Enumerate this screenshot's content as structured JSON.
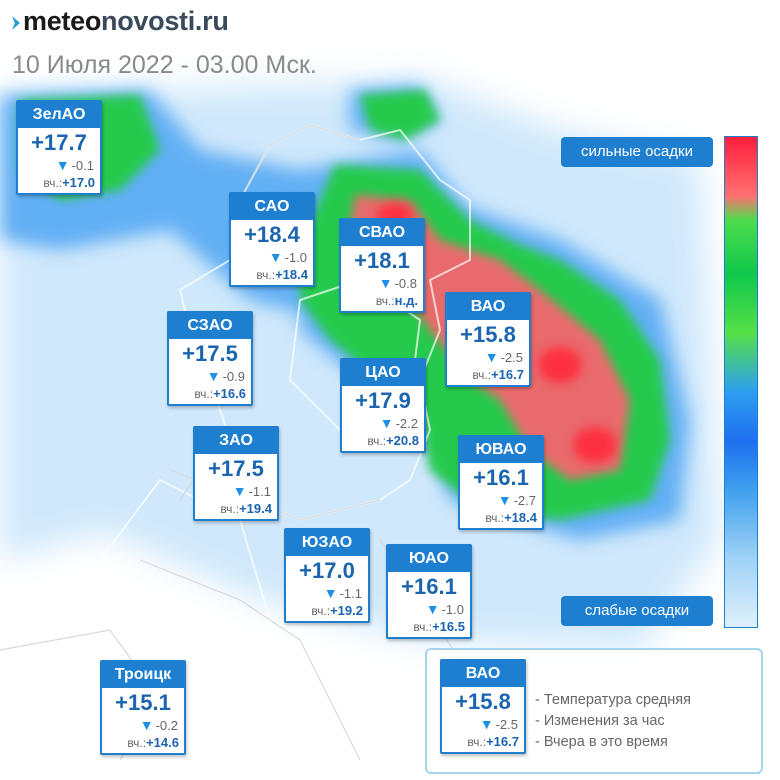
{
  "site_logo": {
    "part1": "meteo",
    "part2": "novosti.ru"
  },
  "subtitle": "10 Июля 2022 - 03.00 Мск.",
  "legend_scale": {
    "high_label": "сильные осадки",
    "low_label": "слабые осадки"
  },
  "yesterday_prefix": "вч.:",
  "districts": [
    {
      "name": "ЗелАО",
      "temp": "+17.7",
      "change": "-0.1",
      "yesterday": "+17.0"
    },
    {
      "name": "САО",
      "temp": "+18.4",
      "change": "-1.0",
      "yesterday": "+18.4"
    },
    {
      "name": "СВАО",
      "temp": "+18.1",
      "change": "-0.8",
      "yesterday": "н.д."
    },
    {
      "name": "ВАО",
      "temp": "+15.8",
      "change": "-2.5",
      "yesterday": "+16.7"
    },
    {
      "name": "СЗАО",
      "temp": "+17.5",
      "change": "-0.9",
      "yesterday": "+16.6"
    },
    {
      "name": "ЦАО",
      "temp": "+17.9",
      "change": "-2.2",
      "yesterday": "+20.8"
    },
    {
      "name": "ЗАО",
      "temp": "+17.5",
      "change": "-1.1",
      "yesterday": "+19.4"
    },
    {
      "name": "ЮВАО",
      "temp": "+16.1",
      "change": "-2.7",
      "yesterday": "+18.4"
    },
    {
      "name": "ЮЗАО",
      "temp": "+17.0",
      "change": "-1.1",
      "yesterday": "+19.2"
    },
    {
      "name": "ЮАО",
      "temp": "+16.1",
      "change": "-1.0",
      "yesterday": "+16.5"
    },
    {
      "name": "Троицк",
      "temp": "+15.1",
      "change": "-0.2",
      "yesterday": "+14.6"
    }
  ],
  "legend_example": {
    "card": {
      "name": "ВАО",
      "temp": "+15.8",
      "change": "-2.5",
      "yesterday": "+16.7"
    },
    "lines": [
      "- Температура средняя",
      "- Изменения за час",
      "- Вчера в это время"
    ]
  },
  "colors": {
    "accent": "#1e7fd1",
    "heavy_rain": "#ff3c4c",
    "medium_rain": "#22cc44",
    "light_rain": "#1e90ff",
    "drizzle": "#bfe2fa"
  },
  "icons": {
    "change": "down-triangle-icon",
    "logo_mark": "logo-mark-icon"
  }
}
